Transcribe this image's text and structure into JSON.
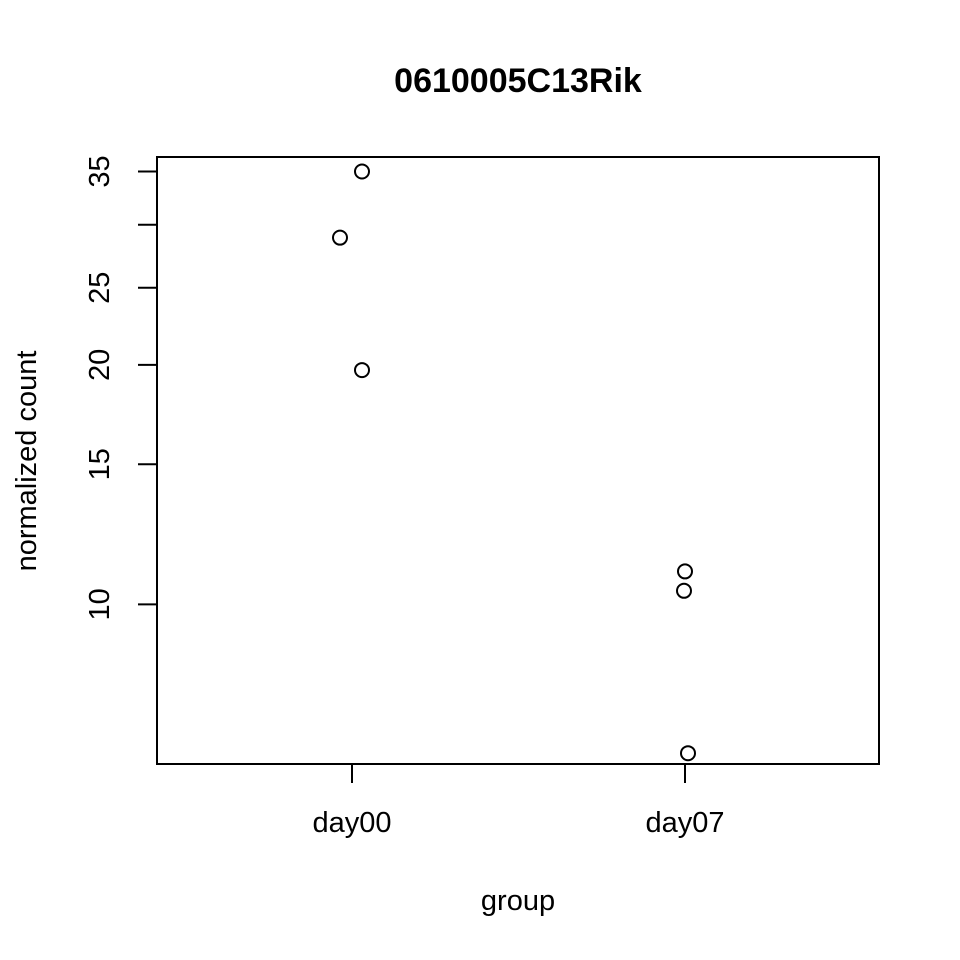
{
  "chart_data": {
    "type": "scatter",
    "title": "0610005C13Rik",
    "xlabel": "group",
    "ylabel": "normalized count",
    "categories": [
      "day00",
      "day07"
    ],
    "y_scale": "log",
    "ylim": [
      6.3,
      36.5
    ],
    "y_ticks": [
      10,
      15,
      20,
      25,
      30,
      35
    ],
    "y_tick_labels": [
      "10",
      "15",
      "20",
      "25",
      "",
      "35"
    ],
    "grid": false,
    "legend": "none",
    "points": [
      {
        "category": "day00",
        "y": 35.0
      },
      {
        "category": "day00",
        "y": 28.9
      },
      {
        "category": "day00",
        "y": 19.7
      },
      {
        "category": "day07",
        "y": 11.0
      },
      {
        "category": "day07",
        "y": 10.4
      },
      {
        "category": "day07",
        "y": 6.5
      }
    ]
  }
}
